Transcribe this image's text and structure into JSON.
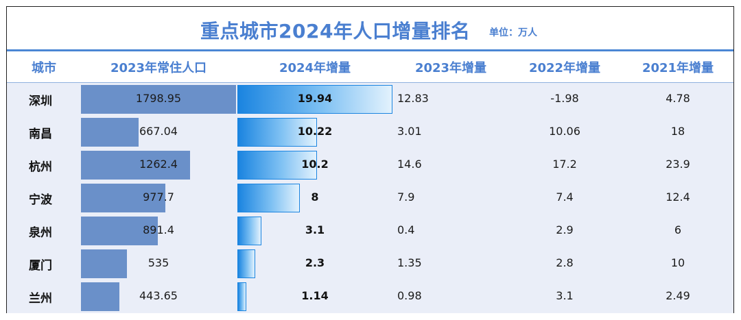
{
  "title": "重点城市2024年人口增量排名",
  "unit": "单位：万人",
  "columns": [
    "城市",
    "2023年常住人口",
    "2024年增量",
    "2023年增量",
    "2022年增量",
    "2021年增量"
  ],
  "colors": {
    "accent": "#4a7fd0",
    "pop_bar": "#6a90c9",
    "inc_bar": "#1a84e0",
    "row_bg": "#eaeef8"
  },
  "chart_data": {
    "type": "table",
    "columns": [
      "城市",
      "2023年常住人口",
      "2024年增量",
      "2023年增量",
      "2022年增量",
      "2021年增量"
    ],
    "rows": [
      {
        "city": "深圳",
        "pop2023": "1798.95",
        "inc2024": "19.94",
        "inc2023": "12.83",
        "inc2022": "-1.98",
        "inc2021": "4.78"
      },
      {
        "city": "南昌",
        "pop2023": "667.04",
        "inc2024": "10.22",
        "inc2023": "3.01",
        "inc2022": "10.06",
        "inc2021": "18"
      },
      {
        "city": "杭州",
        "pop2023": "1262.4",
        "inc2024": "10.2",
        "inc2023": "14.6",
        "inc2022": "17.2",
        "inc2021": "23.9"
      },
      {
        "city": "宁波",
        "pop2023": "977.7",
        "inc2024": "8",
        "inc2023": "7.9",
        "inc2022": "7.4",
        "inc2021": "12.4"
      },
      {
        "city": "泉州",
        "pop2023": "891.4",
        "inc2024": "3.1",
        "inc2023": "0.4",
        "inc2022": "2.9",
        "inc2021": "6"
      },
      {
        "city": "厦门",
        "pop2023": "535",
        "inc2024": "2.3",
        "inc2023": "1.35",
        "inc2022": "2.8",
        "inc2021": "10"
      },
      {
        "city": "兰州",
        "pop2023": "443.65",
        "inc2024": "1.14",
        "inc2023": "0.98",
        "inc2022": "3.1",
        "inc2021": "2.49"
      }
    ],
    "data_bars": [
      "2023年常住人口",
      "2024年增量"
    ]
  }
}
